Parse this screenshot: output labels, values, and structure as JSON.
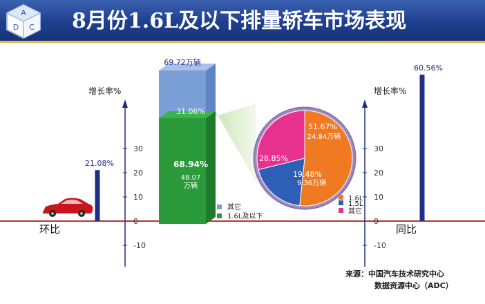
{
  "title": "8月份1.6L及以下排量轿车市场表现",
  "logo": {
    "letters": [
      "A",
      "D",
      "C"
    ]
  },
  "source": {
    "line1": "来源：中国汽车技术研究中心",
    "line2": "数据资源中心（ADC）"
  },
  "colors": {
    "header": "#1f3f8e",
    "bar_navy": "#1f2f86",
    "bar_green": "#2a9a3a",
    "bar_blue": "#7a9ed6",
    "pie_orange": "#ef7a22",
    "pie_blue": "#2c5fb5",
    "pie_pink": "#e8318f",
    "baseline": "#c0303a",
    "axis": "#1e2f7a"
  },
  "chart_data": [
    {
      "type": "bar",
      "ylabel": "增长率%",
      "ylim": [
        -15,
        40
      ],
      "categories": [
        "环比",
        "同比"
      ],
      "values": [
        21.08,
        60.56
      ],
      "data_labels": [
        "21.08%",
        "60.56%"
      ],
      "y_ticks": [
        -10,
        0,
        10,
        20,
        30
      ]
    },
    {
      "type": "bar",
      "stacked": true,
      "total_label": "69.72万辆",
      "total": 69.72,
      "series": [
        {
          "name": "1.6L及以下",
          "value": 48.07,
          "percent": 68.94,
          "percent_label": "68.94%",
          "value_label": "48.07",
          "unit_label": "万辆"
        },
        {
          "name": "其它",
          "value": 21.65,
          "percent": 31.06,
          "percent_label": "31.06%"
        }
      ],
      "legend": [
        "其它",
        "1.6L及以下"
      ]
    },
    {
      "type": "pie",
      "slices": [
        {
          "name": "1.6L",
          "percent": 51.67,
          "percent_label": "51.67%",
          "value_label": "24.84万辆"
        },
        {
          "name": "1.5L",
          "percent": 19.48,
          "percent_label": "19.48%",
          "value_label": "9.36万辆"
        },
        {
          "name": "其它",
          "percent": 28.85,
          "percent_label": "28.85%"
        }
      ],
      "legend": [
        "1.6L",
        "1.5L",
        "其它"
      ]
    }
  ]
}
